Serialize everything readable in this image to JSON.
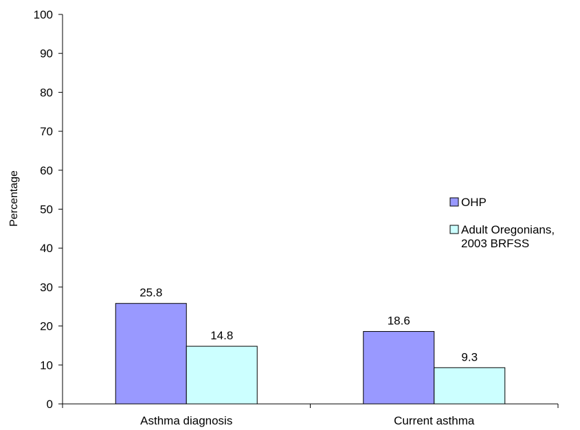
{
  "chart_data": {
    "type": "bar",
    "title": "",
    "xlabel": "",
    "ylabel": "Percentage",
    "ylim": [
      0,
      100
    ],
    "yticks": [
      0,
      10,
      20,
      30,
      40,
      50,
      60,
      70,
      80,
      90,
      100
    ],
    "ytick_labels": [
      "0",
      "10",
      "20",
      "30",
      "40",
      "50",
      "60",
      "70",
      "80",
      "90",
      "100"
    ],
    "categories": [
      "Asthma diagnosis",
      "Current asthma"
    ],
    "series": [
      {
        "name": "OHP",
        "values": [
          25.8,
          18.6
        ],
        "labels": [
          "25.8",
          "18.6"
        ],
        "color": "#9999ff"
      },
      {
        "name": "Adult Oregonians,\n2003 BRFSS",
        "name_lines": [
          "Adult Oregonians,",
          "2003 BRFSS"
        ],
        "values": [
          14.8,
          9.3
        ],
        "labels": [
          "14.8",
          "9.3"
        ],
        "color": "#ccffff"
      }
    ],
    "grid": false,
    "legend_position": "right"
  }
}
